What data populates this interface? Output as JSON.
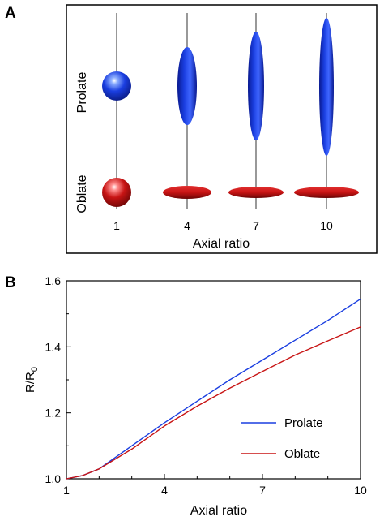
{
  "panel_a": {
    "letter": "A",
    "row_labels": {
      "prolate": "Prolate",
      "oblate": "Oblate"
    },
    "tick_labels": [
      "1",
      "4",
      "7",
      "10"
    ],
    "xlabel": "Axial ratio",
    "colors": {
      "prolate": "#1a3ee0",
      "oblate": "#c81414"
    }
  },
  "panel_b": {
    "letter": "B"
  },
  "chart_data": {
    "type": "line",
    "xlabel": "Axial ratio",
    "ylabel": "R/R",
    "ylabel_sub": "0",
    "xlim": [
      1,
      10
    ],
    "ylim": [
      1.0,
      1.6
    ],
    "xticks": [
      1,
      4,
      7,
      10
    ],
    "xtick_labels": [
      "1",
      "4",
      "7",
      "10"
    ],
    "yticks": [
      1.0,
      1.2,
      1.4,
      1.6
    ],
    "ytick_labels": [
      "1.0",
      "1.2",
      "1.4",
      "1.6"
    ],
    "grid": false,
    "legend_position": "lower-right",
    "series": [
      {
        "name": "Prolate",
        "color": "#1a3ee0",
        "x": [
          1,
          1.5,
          2,
          3,
          4,
          5,
          6,
          7,
          8,
          9,
          10
        ],
        "y": [
          1.0,
          1.01,
          1.03,
          1.1,
          1.17,
          1.235,
          1.3,
          1.36,
          1.42,
          1.48,
          1.545
        ]
      },
      {
        "name": "Oblate",
        "color": "#c81414",
        "x": [
          1,
          1.5,
          2,
          3,
          4,
          5,
          6,
          7,
          8,
          9,
          10
        ],
        "y": [
          1.0,
          1.01,
          1.03,
          1.09,
          1.16,
          1.22,
          1.275,
          1.325,
          1.375,
          1.418,
          1.46
        ]
      }
    ]
  }
}
